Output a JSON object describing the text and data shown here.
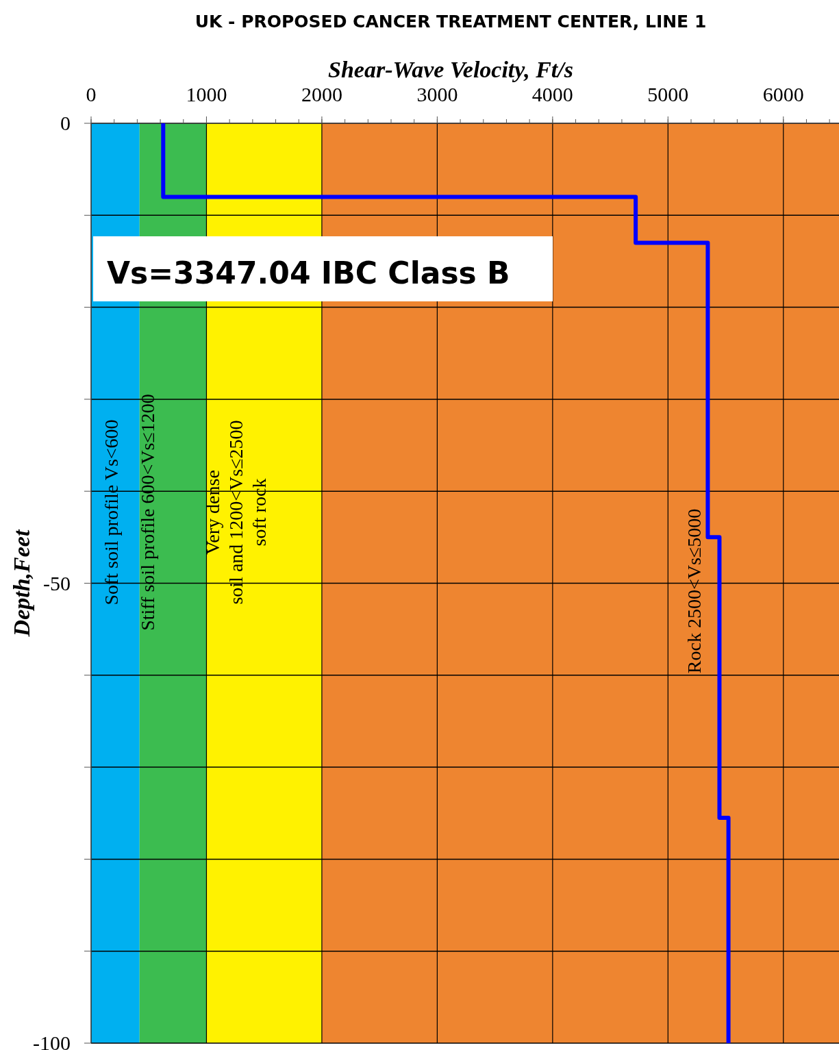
{
  "chart_data": {
    "type": "line",
    "title": "UK - PROPOSED CANCER TREATMENT CENTER, LINE 1",
    "xlabel": "Shear-Wave Velocity, Ft/s",
    "ylabel": "Depth,Feet",
    "xlim": [
      0,
      6500
    ],
    "xticks": [
      0,
      1000,
      2000,
      3000,
      4000,
      5000,
      6000
    ],
    "ylim": [
      -100,
      0
    ],
    "yticks": [
      0,
      {
        "value": -10,
        "label": null
      },
      {
        "value": -20,
        "label": null
      },
      {
        "value": -30,
        "label": null
      },
      {
        "value": -40,
        "label": null
      },
      -50,
      {
        "value": -60,
        "label": null
      },
      {
        "value": -70,
        "label": null
      },
      {
        "value": -80,
        "label": null
      },
      {
        "value": -90,
        "label": null
      },
      -100
    ],
    "grid": true,
    "marker": "none",
    "line_style": "solid",
    "series": [
      {
        "color": "#0000ff",
        "x": [
          625,
          625,
          4720,
          4720,
          5345,
          5345,
          5446,
          5446,
          5524,
          5524
        ],
        "values": [
          0,
          -8,
          -8,
          -13,
          -13,
          -45,
          -45,
          -75.5,
          -75.5,
          -100
        ]
      }
    ],
    "bands": [
      {
        "axis": "x",
        "from": 0,
        "to": 420,
        "label": "Soft soil profile  Vs<600",
        "color": "#00b0f0"
      },
      {
        "axis": "x",
        "from": 420,
        "to": 1000,
        "label": "Stiff soil profile 600<Vs≤1200",
        "color": "#3cbc50"
      },
      {
        "axis": "x",
        "from": 1000,
        "to": 2000,
        "label": "Very dense\nsoil and  1200<Vs≤2500\nsoft rock",
        "color": "#fff200"
      },
      {
        "axis": "x",
        "from": 2000,
        "to": 6500,
        "label": "Rock 2500<Vs≤5000",
        "color": "#ee8530"
      }
    ],
    "annotations": [
      "Vs=3347.04 IBC Class B"
    ]
  }
}
